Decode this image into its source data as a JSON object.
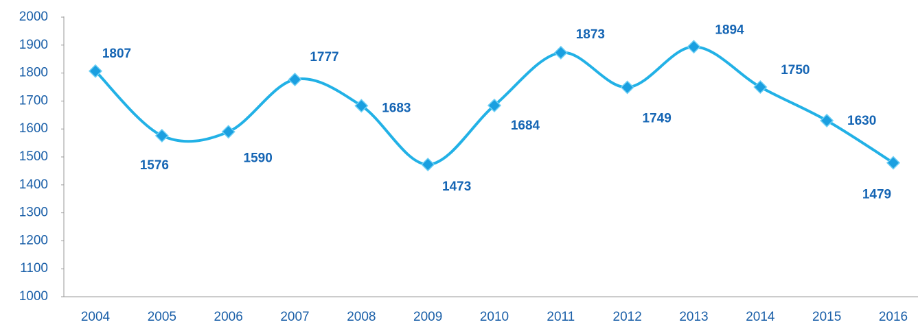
{
  "chart_data": {
    "type": "line",
    "categories": [
      "2004",
      "2005",
      "2006",
      "2007",
      "2008",
      "2009",
      "2010",
      "2011",
      "2012",
      "2013",
      "2014",
      "2015",
      "2016"
    ],
    "values": [
      1807,
      1576,
      1590,
      1777,
      1683,
      1473,
      1684,
      1873,
      1749,
      1894,
      1750,
      1630,
      1479
    ],
    "color": "#22b1e6",
    "marker_color": "#1a9fe0",
    "label_color": "#1565b4",
    "ylim": [
      1000,
      2000
    ],
    "yticks": [
      1000,
      1100,
      1200,
      1300,
      1400,
      1500,
      1600,
      1700,
      1800,
      1900,
      2000
    ],
    "grid": false,
    "smooth": true
  }
}
